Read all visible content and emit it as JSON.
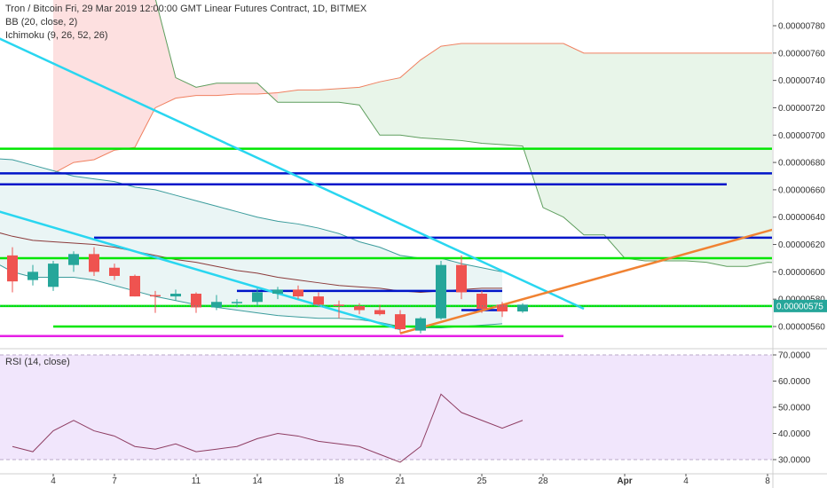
{
  "header": {
    "symbol_line": "Tron / Bitcoin Fri, 29 Mar 2019 12:00:00 GMT Linear Futures Contract, 1D, BITMEX",
    "bb_label": "BB (20, close, 2)",
    "ichimoku_label": "Ichimoku (9, 26, 52, 26)",
    "rsi_label": "RSI (14, close)"
  },
  "chart_data": [
    {
      "type": "candlestick",
      "title": "Tron / Bitcoin Fri, 29 Mar 2019 12:00:00 GMT Linear Futures Contract, 1D, BITMEX",
      "x_ticks": [
        "4",
        "7",
        "11",
        "14",
        "18",
        "21",
        "25",
        "28",
        "Apr",
        "4",
        "8"
      ],
      "y_ticks": [
        "0.00000560",
        "0.00000580",
        "0.00000600",
        "0.00000620",
        "0.00000640",
        "0.00000660",
        "0.00000680",
        "0.00000700",
        "0.00000720",
        "0.00000740",
        "0.00000760",
        "0.00000780"
      ],
      "ylim": [
        5.48e-06,
        7.85e-06
      ],
      "last_price_label": "0.00000575",
      "candles": [
        {
          "date": "2019-03-02",
          "o": 6.12e-06,
          "h": 6.18e-06,
          "l": 5.85e-06,
          "c": 5.93e-06
        },
        {
          "date": "2019-03-03",
          "o": 5.94e-06,
          "h": 6.05e-06,
          "l": 5.9e-06,
          "c": 6e-06
        },
        {
          "date": "2019-03-04",
          "o": 5.89e-06,
          "h": 6.08e-06,
          "l": 5.86e-06,
          "c": 6.06e-06
        },
        {
          "date": "2019-03-05",
          "o": 6.05e-06,
          "h": 6.15e-06,
          "l": 6e-06,
          "c": 6.13e-06
        },
        {
          "date": "2019-03-06",
          "o": 6.13e-06,
          "h": 6.18e-06,
          "l": 5.97e-06,
          "c": 6e-06
        },
        {
          "date": "2019-03-07",
          "o": 6.03e-06,
          "h": 6.06e-06,
          "l": 5.94e-06,
          "c": 5.97e-06
        },
        {
          "date": "2019-03-08",
          "o": 5.97e-06,
          "h": 5.98e-06,
          "l": 5.82e-06,
          "c": 5.82e-06
        },
        {
          "date": "2019-03-09",
          "o": 5.83e-06,
          "h": 5.86e-06,
          "l": 5.7e-06,
          "c": 5.82e-06
        },
        {
          "date": "2019-03-10",
          "o": 5.82e-06,
          "h": 5.87e-06,
          "l": 5.79e-06,
          "c": 5.84e-06
        },
        {
          "date": "2019-03-11",
          "o": 5.84e-06,
          "h": 5.85e-06,
          "l": 5.7e-06,
          "c": 5.74e-06
        },
        {
          "date": "2019-03-12",
          "o": 5.74e-06,
          "h": 5.83e-06,
          "l": 5.72e-06,
          "c": 5.78e-06
        },
        {
          "date": "2019-03-13",
          "o": 5.77e-06,
          "h": 5.8e-06,
          "l": 5.74e-06,
          "c": 5.78e-06
        },
        {
          "date": "2019-03-14",
          "o": 5.78e-06,
          "h": 5.88e-06,
          "l": 5.75e-06,
          "c": 5.85e-06
        },
        {
          "date": "2019-03-15",
          "o": 5.84e-06,
          "h": 5.89e-06,
          "l": 5.8e-06,
          "c": 5.87e-06
        },
        {
          "date": "2019-03-16",
          "o": 5.87e-06,
          "h": 5.9e-06,
          "l": 5.8e-06,
          "c": 5.82e-06
        },
        {
          "date": "2019-03-17",
          "o": 5.82e-06,
          "h": 5.85e-06,
          "l": 5.75e-06,
          "c": 5.76e-06
        },
        {
          "date": "2019-03-18",
          "o": 5.76e-06,
          "h": 5.79e-06,
          "l": 5.66e-06,
          "c": 5.75e-06
        },
        {
          "date": "2019-03-19",
          "o": 5.75e-06,
          "h": 5.77e-06,
          "l": 5.69e-06,
          "c": 5.72e-06
        },
        {
          "date": "2019-03-20",
          "o": 5.72e-06,
          "h": 5.76e-06,
          "l": 5.68e-06,
          "c": 5.69e-06
        },
        {
          "date": "2019-03-21",
          "o": 5.69e-06,
          "h": 5.72e-06,
          "l": 5.55e-06,
          "c": 5.58e-06
        },
        {
          "date": "2019-03-22",
          "o": 5.57e-06,
          "h": 5.67e-06,
          "l": 5.55e-06,
          "c": 5.66e-06
        },
        {
          "date": "2019-03-23",
          "o": 5.66e-06,
          "h": 6.08e-06,
          "l": 5.65e-06,
          "c": 6.05e-06
        },
        {
          "date": "2019-03-24",
          "o": 6.05e-06,
          "h": 6.12e-06,
          "l": 5.8e-06,
          "c": 5.85e-06
        },
        {
          "date": "2019-03-25",
          "o": 5.84e-06,
          "h": 5.86e-06,
          "l": 5.7e-06,
          "c": 5.73e-06
        },
        {
          "date": "2019-03-26",
          "o": 5.76e-06,
          "h": 5.78e-06,
          "l": 5.67e-06,
          "c": 5.71e-06
        },
        {
          "date": "2019-03-27",
          "o": 5.71e-06,
          "h": 5.77e-06,
          "l": 5.7e-06,
          "c": 5.76e-06
        }
      ],
      "horizontal_lines": [
        {
          "color": "#00e600",
          "price": 6.9e-06,
          "from": "2019-02-28",
          "to": "2019-04-09"
        },
        {
          "color": "#0015c9",
          "price": 6.72e-06,
          "from": "2019-02-28",
          "to": "2019-04-09"
        },
        {
          "color": "#0015c9",
          "price": 6.64e-06,
          "from": "2019-02-28",
          "to": "2019-04-06"
        },
        {
          "color": "#0015c9",
          "price": 6.25e-06,
          "from": "2019-03-06",
          "to": "2019-04-09"
        },
        {
          "color": "#00e600",
          "price": 6.1e-06,
          "from": "2019-02-28",
          "to": "2019-04-09"
        },
        {
          "color": "#00e600",
          "price": 5.75e-06,
          "from": "2019-02-28",
          "to": "2019-04-09"
        },
        {
          "color": "#00e600",
          "price": 5.6e-06,
          "from": "2019-03-04",
          "to": "2019-04-09"
        },
        {
          "color": "#0015c9",
          "price": 5.86e-06,
          "from": "2019-03-13",
          "to": "2019-03-26"
        },
        {
          "color": "#0015c9",
          "price": 5.72e-06,
          "from": "2019-03-24",
          "to": "2019-03-26"
        },
        {
          "color": "#e61ee6",
          "price": 5.53e-06,
          "from": "2019-02-28",
          "to": "2019-03-29"
        }
      ],
      "trend_lines": [
        {
          "color": "#29d6f0",
          "from": [
            "2019-02-28",
            7.8e-06
          ],
          "to": [
            "2019-03-30",
            5.73e-06
          ]
        },
        {
          "color": "#29d6f0",
          "from": [
            "2019-02-28",
            6.5e-06
          ],
          "to": [
            "2019-03-21",
            5.58e-06
          ]
        },
        {
          "color": "#f08232",
          "from": [
            "2019-03-21",
            5.55e-06
          ],
          "to": [
            "2019-04-09",
            6.34e-06
          ]
        }
      ],
      "ichimoku_span_a": [
        [
          "2019-03-04",
          6.72e-06
        ],
        [
          "2019-03-05",
          6.8e-06
        ],
        [
          "2019-03-06",
          6.82e-06
        ],
        [
          "2019-03-07",
          6.89e-06
        ],
        [
          "2019-03-08",
          6.91e-06
        ],
        [
          "2019-03-09",
          7.2e-06
        ],
        [
          "2019-03-10",
          7.27e-06
        ],
        [
          "2019-03-11",
          7.29e-06
        ],
        [
          "2019-03-12",
          7.29e-06
        ],
        [
          "2019-03-13",
          7.3e-06
        ],
        [
          "2019-03-14",
          7.3e-06
        ],
        [
          "2019-03-15",
          7.31e-06
        ],
        [
          "2019-03-16",
          7.33e-06
        ],
        [
          "2019-03-17",
          7.33e-06
        ],
        [
          "2019-03-18",
          7.34e-06
        ],
        [
          "2019-03-19",
          7.35e-06
        ],
        [
          "2019-03-20",
          7.39e-06
        ],
        [
          "2019-03-21",
          7.42e-06
        ],
        [
          "2019-03-22",
          7.55e-06
        ],
        [
          "2019-03-23",
          7.65e-06
        ],
        [
          "2019-03-24",
          7.67e-06
        ],
        [
          "2019-03-25",
          7.67e-06
        ],
        [
          "2019-03-26",
          7.67e-06
        ],
        [
          "2019-03-27",
          7.67e-06
        ],
        [
          "2019-03-28",
          7.67e-06
        ],
        [
          "2019-03-29",
          7.67e-06
        ],
        [
          "2019-03-30",
          7.6e-06
        ],
        [
          "2019-03-31",
          7.6e-06
        ],
        [
          "2019-04-01",
          7.6e-06
        ],
        [
          "2019-04-02",
          7.6e-06
        ],
        [
          "2019-04-03",
          7.6e-06
        ],
        [
          "2019-04-04",
          7.6e-06
        ],
        [
          "2019-04-05",
          7.6e-06
        ],
        [
          "2019-04-06",
          7.6e-06
        ],
        [
          "2019-04-07",
          7.6e-06
        ],
        [
          "2019-04-08",
          7.6e-06
        ],
        [
          "2019-04-09",
          7.6e-06
        ]
      ],
      "ichimoku_span_b": [
        [
          "2019-03-04",
          8e-06
        ],
        [
          "2019-03-05",
          8e-06
        ],
        [
          "2019-03-06",
          8e-06
        ],
        [
          "2019-03-07",
          8e-06
        ],
        [
          "2019-03-08",
          8e-06
        ],
        [
          "2019-03-09",
          8e-06
        ],
        [
          "2019-03-10",
          7.42e-06
        ],
        [
          "2019-03-11",
          7.35e-06
        ],
        [
          "2019-03-12",
          7.38e-06
        ],
        [
          "2019-03-13",
          7.38e-06
        ],
        [
          "2019-03-14",
          7.38e-06
        ],
        [
          "2019-03-15",
          7.24e-06
        ],
        [
          "2019-03-16",
          7.24e-06
        ],
        [
          "2019-03-17",
          7.24e-06
        ],
        [
          "2019-03-18",
          7.24e-06
        ],
        [
          "2019-03-19",
          7.22e-06
        ],
        [
          "2019-03-20",
          7e-06
        ],
        [
          "2019-03-21",
          7e-06
        ],
        [
          "2019-03-22",
          6.98e-06
        ],
        [
          "2019-03-23",
          6.97e-06
        ],
        [
          "2019-03-24",
          6.96e-06
        ],
        [
          "2019-03-25",
          6.94e-06
        ],
        [
          "2019-03-26",
          6.93e-06
        ],
        [
          "2019-03-27",
          6.92e-06
        ],
        [
          "2019-03-28",
          6.47e-06
        ],
        [
          "2019-03-29",
          6.4e-06
        ],
        [
          "2019-03-30",
          6.27e-06
        ],
        [
          "2019-03-31",
          6.27e-06
        ],
        [
          "2019-04-01",
          6.1e-06
        ],
        [
          "2019-04-02",
          6.08e-06
        ],
        [
          "2019-04-03",
          6.08e-06
        ],
        [
          "2019-04-04",
          6.08e-06
        ],
        [
          "2019-04-05",
          6.07e-06
        ],
        [
          "2019-04-06",
          6.04e-06
        ],
        [
          "2019-04-07",
          6.04e-06
        ],
        [
          "2019-04-08",
          6.07e-06
        ],
        [
          "2019-04-09",
          6.06e-06
        ]
      ],
      "bb_upper": [
        [
          "2019-03-01",
          6.83e-06
        ],
        [
          "2019-03-02",
          6.82e-06
        ],
        [
          "2019-03-03",
          6.78e-06
        ],
        [
          "2019-03-04",
          6.74e-06
        ],
        [
          "2019-03-05",
          6.7e-06
        ],
        [
          "2019-03-06",
          6.68e-06
        ],
        [
          "2019-03-07",
          6.66e-06
        ],
        [
          "2019-03-08",
          6.62e-06
        ],
        [
          "2019-03-09",
          6.6e-06
        ],
        [
          "2019-03-10",
          6.56e-06
        ],
        [
          "2019-03-11",
          6.52e-06
        ],
        [
          "2019-03-12",
          6.48e-06
        ],
        [
          "2019-03-13",
          6.44e-06
        ],
        [
          "2019-03-14",
          6.4e-06
        ],
        [
          "2019-03-15",
          6.37e-06
        ],
        [
          "2019-03-16",
          6.35e-06
        ],
        [
          "2019-03-17",
          6.32e-06
        ],
        [
          "2019-03-18",
          6.28e-06
        ],
        [
          "2019-03-19",
          6.22e-06
        ],
        [
          "2019-03-20",
          6.18e-06
        ],
        [
          "2019-03-21",
          6.12e-06
        ],
        [
          "2019-03-22",
          6.1e-06
        ],
        [
          "2019-03-23",
          6.1e-06
        ],
        [
          "2019-03-24",
          6.06e-06
        ],
        [
          "2019-03-25",
          6.03e-06
        ],
        [
          "2019-03-26",
          6e-06
        ]
      ],
      "bb_basis": [
        [
          "2019-03-01",
          6.3e-06
        ],
        [
          "2019-03-02",
          6.26e-06
        ],
        [
          "2019-03-03",
          6.23e-06
        ],
        [
          "2019-03-04",
          6.22e-06
        ],
        [
          "2019-03-05",
          6.21e-06
        ],
        [
          "2019-03-06",
          6.2e-06
        ],
        [
          "2019-03-07",
          6.18e-06
        ],
        [
          "2019-03-08",
          6.15e-06
        ],
        [
          "2019-03-09",
          6.12e-06
        ],
        [
          "2019-03-10",
          6.09e-06
        ],
        [
          "2019-03-11",
          6.07e-06
        ],
        [
          "2019-03-12",
          6.04e-06
        ],
        [
          "2019-03-13",
          6.01e-06
        ],
        [
          "2019-03-14",
          5.99e-06
        ],
        [
          "2019-03-15",
          5.96e-06
        ],
        [
          "2019-03-16",
          5.94e-06
        ],
        [
          "2019-03-17",
          5.92e-06
        ],
        [
          "2019-03-18",
          5.9e-06
        ],
        [
          "2019-03-19",
          5.89e-06
        ],
        [
          "2019-03-20",
          5.88e-06
        ],
        [
          "2019-03-21",
          5.86e-06
        ],
        [
          "2019-03-22",
          5.85e-06
        ],
        [
          "2019-03-23",
          5.86e-06
        ],
        [
          "2019-03-24",
          5.87e-06
        ],
        [
          "2019-03-25",
          5.88e-06
        ],
        [
          "2019-03-26",
          5.88e-06
        ]
      ],
      "bb_lower": [
        [
          "2019-03-01",
          6.08e-06
        ],
        [
          "2019-03-02",
          6e-06
        ],
        [
          "2019-03-03",
          5.96e-06
        ],
        [
          "2019-03-04",
          5.96e-06
        ],
        [
          "2019-03-05",
          5.96e-06
        ],
        [
          "2019-03-06",
          5.94e-06
        ],
        [
          "2019-03-07",
          5.9e-06
        ],
        [
          "2019-03-08",
          5.86e-06
        ],
        [
          "2019-03-09",
          5.82e-06
        ],
        [
          "2019-03-10",
          5.79e-06
        ],
        [
          "2019-03-11",
          5.76e-06
        ],
        [
          "2019-03-12",
          5.74e-06
        ],
        [
          "2019-03-13",
          5.72e-06
        ],
        [
          "2019-03-14",
          5.7e-06
        ],
        [
          "2019-03-15",
          5.68e-06
        ],
        [
          "2019-03-16",
          5.67e-06
        ],
        [
          "2019-03-17",
          5.66e-06
        ],
        [
          "2019-03-18",
          5.66e-06
        ],
        [
          "2019-03-19",
          5.65e-06
        ],
        [
          "2019-03-20",
          5.63e-06
        ],
        [
          "2019-03-21",
          5.6e-06
        ],
        [
          "2019-03-22",
          5.59e-06
        ],
        [
          "2019-03-23",
          5.59e-06
        ],
        [
          "2019-03-24",
          5.6e-06
        ],
        [
          "2019-03-25",
          5.61e-06
        ],
        [
          "2019-03-26",
          5.62e-06
        ]
      ],
      "colors": {
        "up": "#26a69a",
        "down": "#ef5350",
        "cloud_bull": "#e8f5e9",
        "cloud_bear": "#fde0e0",
        "span_a": "#f08060",
        "span_b": "#5e9e5e",
        "bb_line": "#3b9c9c",
        "bb_basis": "#8b3a3a",
        "bb_fill": "#eaf5f5",
        "last_price": "#26a69a"
      }
    },
    {
      "type": "line",
      "title": "RSI (14, close)",
      "y_ticks": [
        "30.0000",
        "40.0000",
        "50.0000",
        "60.0000",
        "70.0000"
      ],
      "ylim": [
        28,
        72
      ],
      "band": [
        30,
        70
      ],
      "series": [
        {
          "name": "RSI (14, close)",
          "color": "#8e3d62",
          "points": [
            [
              "2019-03-02",
              35
            ],
            [
              "2019-03-03",
              33
            ],
            [
              "2019-03-04",
              41
            ],
            [
              "2019-03-05",
              45
            ],
            [
              "2019-03-06",
              41
            ],
            [
              "2019-03-07",
              39
            ],
            [
              "2019-03-08",
              35
            ],
            [
              "2019-03-09",
              34
            ],
            [
              "2019-03-10",
              36
            ],
            [
              "2019-03-11",
              33
            ],
            [
              "2019-03-12",
              34
            ],
            [
              "2019-03-13",
              35
            ],
            [
              "2019-03-14",
              38
            ],
            [
              "2019-03-15",
              40
            ],
            [
              "2019-03-16",
              39
            ],
            [
              "2019-03-17",
              37
            ],
            [
              "2019-03-18",
              36
            ],
            [
              "2019-03-19",
              35
            ],
            [
              "2019-03-20",
              32
            ],
            [
              "2019-03-21",
              29
            ],
            [
              "2019-03-22",
              35
            ],
            [
              "2019-03-23",
              55
            ],
            [
              "2019-03-24",
              48
            ],
            [
              "2019-03-25",
              45
            ],
            [
              "2019-03-26",
              42
            ],
            [
              "2019-03-27",
              45
            ]
          ]
        }
      ]
    }
  ]
}
